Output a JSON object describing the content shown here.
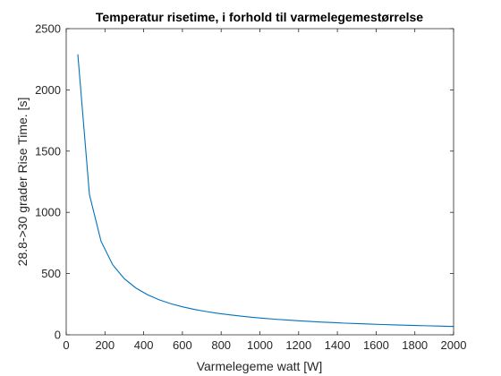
{
  "chart_data": {
    "type": "line",
    "title": "Temperatur risetime, i forhold til varmelegemestørrelse",
    "xlabel": "Varmelegeme watt [W]",
    "ylabel": "28.8->30 grader Rise Time. [s]",
    "xlim": [
      0,
      2000
    ],
    "ylim": [
      0,
      2500
    ],
    "xticks": [
      0,
      200,
      400,
      600,
      800,
      1000,
      1200,
      1400,
      1600,
      1800,
      2000
    ],
    "yticks": [
      0,
      500,
      1000,
      1500,
      2000,
      2500
    ],
    "grid": false,
    "line_color": "#0072BD",
    "series": [
      {
        "x": [
          60,
          120,
          180,
          240,
          300,
          360,
          420,
          480,
          540,
          600,
          660,
          720,
          780,
          840,
          900,
          960,
          1020,
          1080,
          1140,
          1200,
          1260,
          1320,
          1380,
          1440,
          1500,
          1560,
          1620,
          1680,
          1740,
          1800,
          1860,
          1920,
          1980,
          2000
        ],
        "y": [
          2290,
          1145,
          763,
          572,
          458,
          382,
          327,
          286,
          254,
          229,
          208,
          191,
          176,
          164,
          153,
          143,
          135,
          127,
          121,
          115,
          109,
          104,
          100,
          95,
          92,
          88,
          85,
          82,
          79,
          76,
          74,
          72,
          69,
          69
        ]
      }
    ]
  }
}
